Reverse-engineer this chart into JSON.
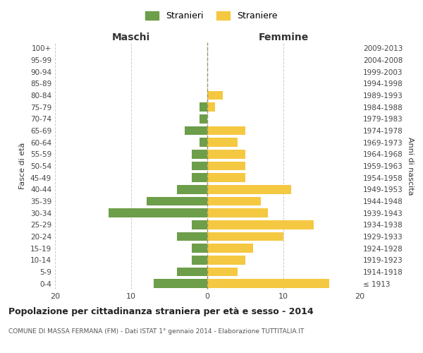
{
  "age_groups": [
    "100+",
    "95-99",
    "90-94",
    "85-89",
    "80-84",
    "75-79",
    "70-74",
    "65-69",
    "60-64",
    "55-59",
    "50-54",
    "45-49",
    "40-44",
    "35-39",
    "30-34",
    "25-29",
    "20-24",
    "15-19",
    "10-14",
    "5-9",
    "0-4"
  ],
  "birth_years": [
    "≤ 1913",
    "1914-1918",
    "1919-1923",
    "1924-1928",
    "1929-1933",
    "1934-1938",
    "1939-1943",
    "1944-1948",
    "1949-1953",
    "1954-1958",
    "1959-1963",
    "1964-1968",
    "1969-1973",
    "1974-1978",
    "1979-1983",
    "1984-1988",
    "1989-1993",
    "1994-1998",
    "1999-2003",
    "2004-2008",
    "2009-2013"
  ],
  "maschi": [
    0,
    0,
    0,
    0,
    0,
    1,
    1,
    3,
    1,
    2,
    2,
    2,
    4,
    8,
    13,
    2,
    4,
    2,
    2,
    4,
    7
  ],
  "femmine": [
    0,
    0,
    0,
    0,
    2,
    1,
    0,
    5,
    4,
    5,
    5,
    5,
    11,
    7,
    8,
    14,
    10,
    6,
    5,
    4,
    16
  ],
  "maschi_color": "#6d9e4a",
  "femmine_color": "#f5c842",
  "grid_color": "#cccccc",
  "center_line_color": "#999966",
  "title": "Popolazione per cittadinanza straniera per età e sesso - 2014",
  "subtitle": "COMUNE DI MASSA FERMANA (FM) - Dati ISTAT 1° gennaio 2014 - Elaborazione TUTTITALIA.IT",
  "xlabel_left": "Maschi",
  "xlabel_right": "Femmine",
  "ylabel_left": "Fasce di età",
  "ylabel_right": "Anni di nascita",
  "legend_maschi": "Stranieri",
  "legend_femmine": "Straniere",
  "xlim": 20,
  "background_color": "#ffffff"
}
